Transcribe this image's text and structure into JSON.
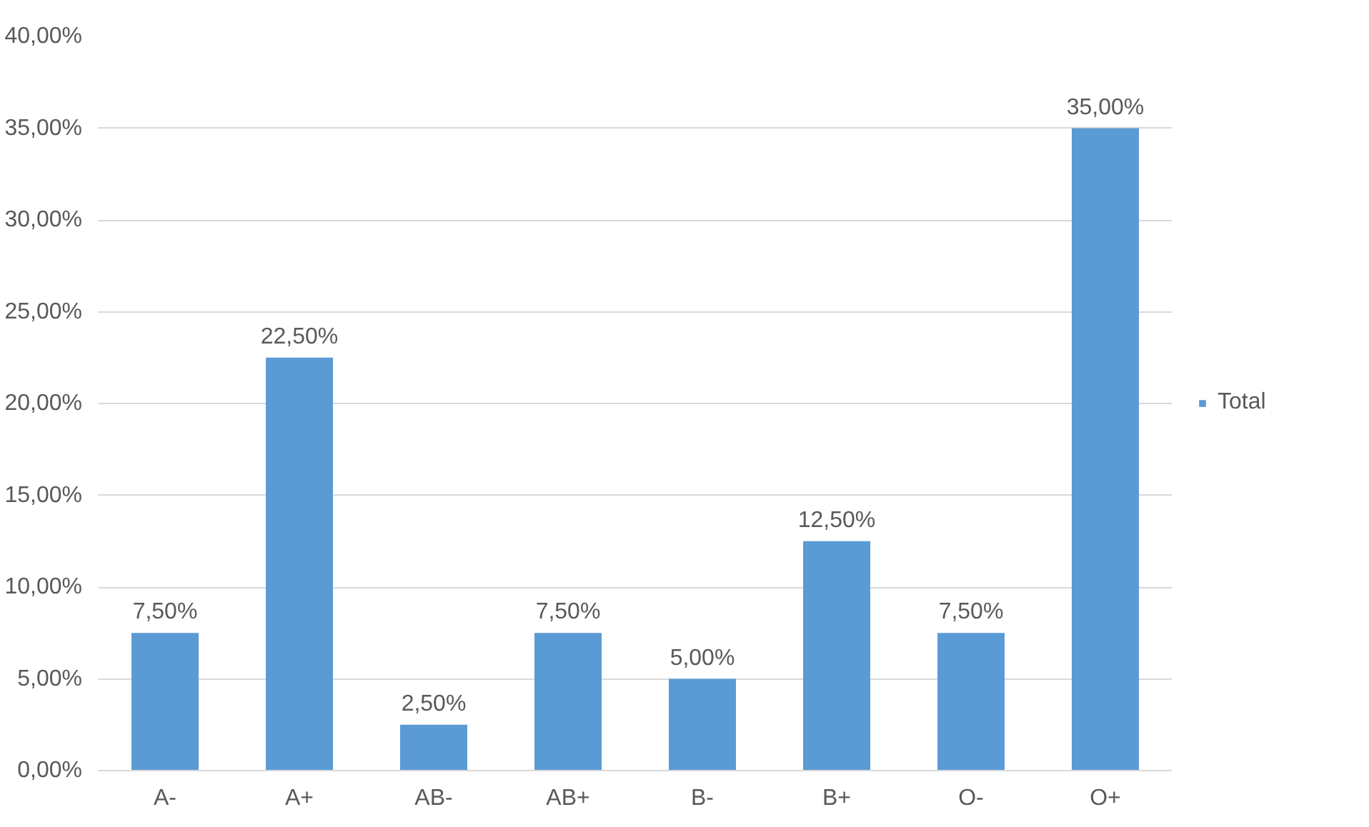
{
  "chart_data": {
    "type": "bar",
    "categories": [
      "A-",
      "A+",
      "AB-",
      "AB+",
      "B-",
      "B+",
      "O-",
      "O+"
    ],
    "series": [
      {
        "name": "Total",
        "color": "#5b9bd5",
        "values": [
          7.5,
          22.5,
          2.5,
          7.5,
          5,
          12.5,
          7.5,
          35
        ],
        "value_labels": [
          "7,50%",
          "22,50%",
          "2,50%",
          "7,50%",
          "5,00%",
          "12,50%",
          "7,50%",
          "35,00%"
        ]
      }
    ],
    "ylim": [
      0,
      40
    ],
    "yticks": [
      {
        "value": 0,
        "label": "0,00%"
      },
      {
        "value": 5,
        "label": "5,00%"
      },
      {
        "value": 10,
        "label": "10,00%"
      },
      {
        "value": 15,
        "label": "15,00%"
      },
      {
        "value": 20,
        "label": "20,00%"
      },
      {
        "value": 25,
        "label": "25,00%"
      },
      {
        "value": 30,
        "label": "30,00%"
      },
      {
        "value": 35,
        "label": "35,00%"
      },
      {
        "value": 40,
        "label": "40,00%"
      }
    ],
    "grid": "y",
    "legend": "right"
  }
}
